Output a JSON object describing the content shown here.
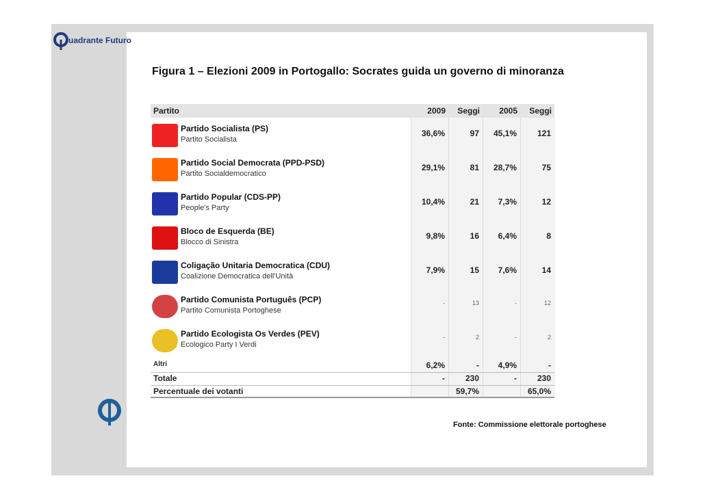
{
  "brand": "uadrante Futuro",
  "title": "Figura 1 – Elezioni 2009 in Portogallo: Socrates guida un governo di minoranza",
  "table": {
    "header": [
      "Partito",
      "2009",
      "Seggi",
      "2005",
      "Seggi"
    ],
    "rows": [
      [
        "Partido Socialista (PS)",
        "Partito Socialista",
        "36,6%",
        "97",
        "45,1%",
        "121"
      ],
      [
        "Partido Social Democrata (PPD-PSD)",
        "Partito Socialdemocratico",
        "29,1%",
        "81",
        "28,7%",
        "75"
      ],
      [
        "Partido Popular (CDS-PP)",
        "People's Party",
        "10,4%",
        "21",
        "7,3%",
        "12"
      ],
      [
        "Bloco de Esquerda (BE)",
        "Blocco di Sinistra",
        "9,8%",
        "16",
        "6,4%",
        "8"
      ],
      [
        "Coligação Unitaria Democratica (CDU)",
        "Coalizione Democratica dell'Unità",
        "7,9%",
        "15",
        "7,6%",
        "14"
      ],
      [
        "Partido Comunista Português (PCP)",
        "Partito Comunista Portoghese",
        "-",
        "13",
        "-",
        "12"
      ],
      [
        "Partido Ecologista Os Verdes (PEV)",
        "Ecologico Party I Verdi",
        "-",
        "2",
        "-",
        "2"
      ]
    ],
    "altri": [
      "Altri",
      "6,2%",
      "-",
      "4,9%",
      "-"
    ],
    "totale": [
      "Totale",
      "-",
      "230",
      "-",
      "230"
    ],
    "percentuale": [
      "Percentuale dei votanti",
      "59,7%",
      "65,0%"
    ]
  },
  "source": "Fonte: Commissione elettorale portoghese"
}
